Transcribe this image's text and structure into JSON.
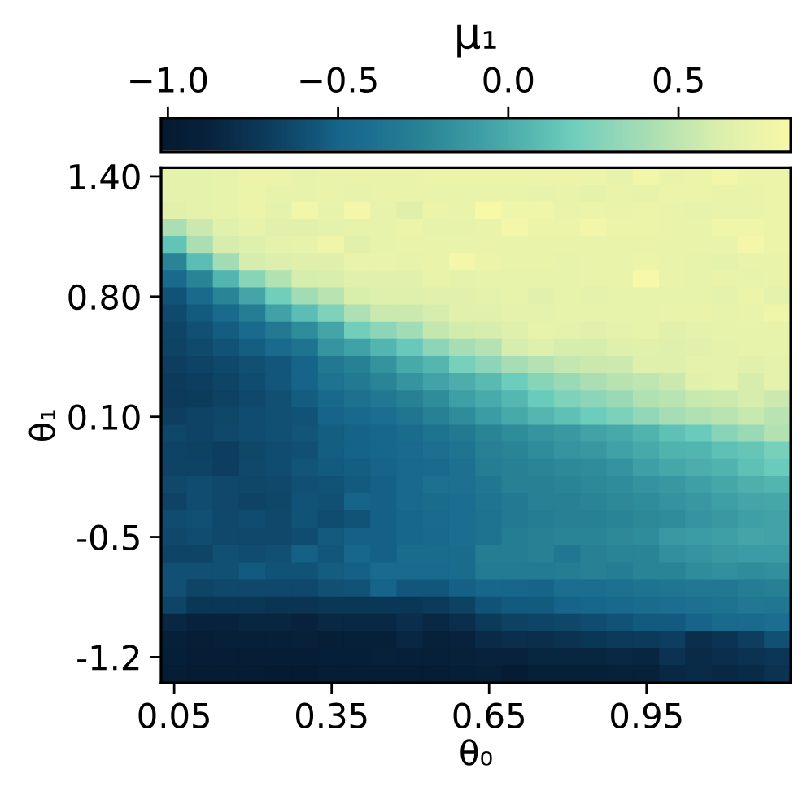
{
  "chart_data": {
    "type": "heatmap",
    "xlabel": "θ₀",
    "ylabel": "θ₁",
    "clabel": "μ₁",
    "categories": [
      "0.05",
      null,
      null,
      null,
      null,
      null,
      "0.35",
      null,
      null,
      null,
      null,
      null,
      "0.65",
      null,
      null,
      null,
      null,
      null,
      "0.95",
      null,
      null,
      null,
      null,
      null
    ],
    "y_categories": [
      "1.40",
      null,
      null,
      null,
      null,
      null,
      null,
      "0.80",
      null,
      null,
      null,
      null,
      null,
      null,
      "0.10",
      null,
      null,
      null,
      null,
      null,
      null,
      "-0.5",
      null,
      null,
      null,
      null,
      null,
      null,
      "-1.2",
      null
    ],
    "clim": [
      -1.02,
      0.83
    ],
    "cticks": [
      {
        "value": -1.0,
        "label": "−1.0"
      },
      {
        "value": -0.5,
        "label": "−0.5"
      },
      {
        "value": 0.0,
        "label": "0.0"
      },
      0.5
    ],
    "cells": [
      [
        0.68,
        0.68,
        0.7,
        0.75,
        0.75,
        0.7,
        0.72,
        0.72,
        0.72,
        0.72,
        0.74,
        0.74,
        0.74,
        0.74,
        0.75,
        0.75,
        0.74,
        0.7,
        0.78,
        0.72,
        0.74,
        0.78,
        0.74,
        0.74
      ],
      [
        0.68,
        0.68,
        0.7,
        0.74,
        0.7,
        0.7,
        0.72,
        0.7,
        0.72,
        0.72,
        0.72,
        0.72,
        0.72,
        0.72,
        0.7,
        0.72,
        0.68,
        0.72,
        0.7,
        0.74,
        0.74,
        0.72,
        0.72,
        0.74
      ],
      [
        0.66,
        0.68,
        0.7,
        0.74,
        0.68,
        0.78,
        0.7,
        0.8,
        0.7,
        0.65,
        0.74,
        0.72,
        0.82,
        0.76,
        0.76,
        0.72,
        0.74,
        0.72,
        0.74,
        0.72,
        0.7,
        0.72,
        0.72,
        0.74
      ],
      [
        0.42,
        0.55,
        0.66,
        0.7,
        0.66,
        0.66,
        0.68,
        0.7,
        0.7,
        0.74,
        0.7,
        0.7,
        0.72,
        0.8,
        0.74,
        0.74,
        0.78,
        0.74,
        0.74,
        0.72,
        0.72,
        0.76,
        0.76,
        0.74
      ],
      [
        0.13,
        0.42,
        0.6,
        0.64,
        0.68,
        0.7,
        0.76,
        0.66,
        0.7,
        0.72,
        0.72,
        0.72,
        0.72,
        0.72,
        0.72,
        0.72,
        0.72,
        0.72,
        0.72,
        0.72,
        0.72,
        0.72,
        0.8,
        0.74
      ],
      [
        -0.25,
        0.1,
        0.38,
        0.6,
        0.63,
        0.65,
        0.65,
        0.72,
        0.72,
        0.7,
        0.72,
        0.8,
        0.74,
        0.72,
        0.72,
        0.7,
        0.72,
        0.72,
        0.74,
        0.72,
        0.7,
        0.68,
        0.72,
        0.72
      ],
      [
        -0.45,
        -0.25,
        0.05,
        0.28,
        0.45,
        0.6,
        0.62,
        0.66,
        0.66,
        0.66,
        0.72,
        0.68,
        0.7,
        0.7,
        0.7,
        0.7,
        0.72,
        0.72,
        0.82,
        0.72,
        0.7,
        0.72,
        0.7,
        0.72
      ],
      [
        -0.58,
        -0.45,
        -0.25,
        -0.05,
        0.2,
        0.38,
        0.48,
        0.62,
        0.64,
        0.64,
        0.66,
        0.66,
        0.68,
        0.7,
        0.66,
        0.7,
        0.68,
        0.7,
        0.7,
        0.7,
        0.7,
        0.68,
        0.74,
        0.68
      ],
      [
        -0.63,
        -0.55,
        -0.45,
        -0.3,
        -0.07,
        0.1,
        0.25,
        0.43,
        0.55,
        0.55,
        0.6,
        0.66,
        0.66,
        0.68,
        0.68,
        0.7,
        0.7,
        0.7,
        0.7,
        0.72,
        0.72,
        0.7,
        0.72,
        0.76
      ],
      [
        -0.66,
        -0.6,
        -0.54,
        -0.45,
        -0.33,
        -0.2,
        -0.05,
        0.2,
        0.3,
        0.38,
        0.52,
        0.58,
        0.6,
        0.64,
        0.7,
        0.68,
        0.66,
        0.68,
        0.7,
        0.66,
        0.68,
        0.7,
        0.7,
        0.7
      ],
      [
        -0.67,
        -0.63,
        -0.58,
        -0.53,
        -0.45,
        -0.38,
        -0.15,
        -0.07,
        0.05,
        0.16,
        0.3,
        0.4,
        0.46,
        0.6,
        0.64,
        0.6,
        0.6,
        0.64,
        0.66,
        0.64,
        0.66,
        0.68,
        0.7,
        0.7
      ],
      [
        -0.7,
        -0.67,
        -0.64,
        -0.6,
        -0.56,
        -0.5,
        -0.34,
        -0.27,
        -0.16,
        -0.02,
        0.06,
        0.22,
        0.3,
        0.4,
        0.46,
        0.52,
        0.55,
        0.56,
        0.64,
        0.64,
        0.68,
        0.68,
        0.66,
        0.68
      ],
      [
        -0.72,
        -0.7,
        -0.66,
        -0.62,
        -0.56,
        -0.5,
        -0.38,
        -0.33,
        -0.25,
        -0.15,
        -0.06,
        0.0,
        0.08,
        0.18,
        0.28,
        0.35,
        0.42,
        0.47,
        0.5,
        0.55,
        0.66,
        0.68,
        0.6,
        0.68
      ],
      [
        -0.72,
        -0.71,
        -0.68,
        -0.64,
        -0.6,
        -0.54,
        -0.47,
        -0.4,
        -0.34,
        -0.28,
        -0.2,
        -0.08,
        -0.01,
        0.07,
        0.17,
        0.25,
        0.3,
        0.35,
        0.44,
        0.48,
        0.54,
        0.56,
        0.6,
        0.55
      ],
      [
        -0.7,
        -0.67,
        -0.65,
        -0.62,
        -0.6,
        -0.58,
        -0.5,
        -0.47,
        -0.42,
        -0.36,
        -0.28,
        -0.2,
        -0.1,
        -0.02,
        0.06,
        0.12,
        0.18,
        0.24,
        0.32,
        0.4,
        0.44,
        0.48,
        0.54,
        0.48
      ],
      [
        -0.65,
        -0.67,
        -0.64,
        -0.62,
        -0.6,
        -0.57,
        -0.53,
        -0.51,
        -0.48,
        -0.44,
        -0.38,
        -0.33,
        -0.25,
        -0.2,
        -0.15,
        -0.12,
        -0.06,
        -0.02,
        0.04,
        0.12,
        0.17,
        0.28,
        0.35,
        0.45
      ],
      [
        -0.67,
        -0.68,
        -0.7,
        -0.65,
        -0.62,
        -0.6,
        -0.53,
        -0.51,
        -0.48,
        -0.45,
        -0.41,
        -0.37,
        -0.28,
        -0.25,
        -0.2,
        -0.15,
        -0.13,
        -0.07,
        -0.02,
        0.04,
        0.05,
        0.12,
        0.15,
        0.22
      ],
      [
        -0.67,
        -0.67,
        -0.7,
        -0.64,
        -0.62,
        -0.57,
        -0.55,
        -0.53,
        -0.5,
        -0.47,
        -0.45,
        -0.4,
        -0.3,
        -0.28,
        -0.25,
        -0.22,
        -0.2,
        -0.16,
        -0.08,
        -0.03,
        0.0,
        0.04,
        0.12,
        0.17
      ],
      [
        -0.64,
        -0.62,
        -0.64,
        -0.65,
        -0.64,
        -0.6,
        -0.58,
        -0.55,
        -0.52,
        -0.46,
        -0.4,
        -0.4,
        -0.35,
        -0.28,
        -0.28,
        -0.25,
        -0.22,
        -0.2,
        -0.16,
        -0.13,
        -0.08,
        -0.03,
        0.02,
        0.05
      ],
      [
        -0.67,
        -0.62,
        -0.64,
        -0.67,
        -0.65,
        -0.58,
        -0.6,
        -0.5,
        -0.52,
        -0.46,
        -0.44,
        -0.42,
        -0.37,
        -0.33,
        -0.28,
        -0.28,
        -0.25,
        -0.22,
        -0.2,
        -0.16,
        -0.13,
        -0.08,
        -0.05,
        -0.03
      ],
      [
        -0.62,
        -0.6,
        -0.64,
        -0.62,
        -0.64,
        -0.58,
        -0.62,
        -0.58,
        -0.52,
        -0.48,
        -0.45,
        -0.42,
        -0.38,
        -0.33,
        -0.3,
        -0.28,
        -0.27,
        -0.25,
        -0.22,
        -0.2,
        -0.15,
        -0.12,
        -0.08,
        -0.06
      ],
      [
        -0.64,
        -0.62,
        -0.64,
        -0.64,
        -0.64,
        -0.62,
        -0.55,
        -0.52,
        -0.52,
        -0.48,
        -0.46,
        -0.42,
        -0.38,
        -0.3,
        -0.28,
        -0.25,
        -0.25,
        -0.22,
        -0.2,
        -0.12,
        -0.1,
        -0.08,
        -0.05,
        -0.06
      ],
      [
        -0.66,
        -0.66,
        -0.6,
        -0.62,
        -0.6,
        -0.52,
        -0.56,
        -0.48,
        -0.52,
        -0.44,
        -0.44,
        -0.44,
        -0.3,
        -0.3,
        -0.28,
        -0.35,
        -0.28,
        -0.25,
        -0.25,
        -0.18,
        -0.15,
        -0.12,
        -0.1,
        -0.1
      ],
      [
        -0.6,
        -0.6,
        -0.6,
        -0.55,
        -0.58,
        -0.58,
        -0.54,
        -0.52,
        -0.45,
        -0.45,
        -0.45,
        -0.44,
        -0.32,
        -0.32,
        -0.32,
        -0.3,
        -0.28,
        -0.3,
        -0.25,
        -0.25,
        -0.2,
        -0.18,
        -0.2,
        -0.18
      ],
      [
        -0.6,
        -0.66,
        -0.64,
        -0.64,
        -0.64,
        -0.64,
        -0.6,
        -0.58,
        -0.5,
        -0.56,
        -0.56,
        -0.52,
        -0.48,
        -0.48,
        -0.5,
        -0.42,
        -0.42,
        -0.4,
        -0.38,
        -0.36,
        -0.34,
        -0.34,
        -0.3,
        -0.28
      ],
      [
        -0.66,
        -0.74,
        -0.74,
        -0.74,
        -0.76,
        -0.76,
        -0.74,
        -0.74,
        -0.74,
        -0.74,
        -0.72,
        -0.68,
        -0.58,
        -0.55,
        -0.55,
        -0.5,
        -0.48,
        -0.46,
        -0.44,
        -0.42,
        -0.4,
        -0.38,
        -0.34,
        -0.35
      ],
      [
        -0.85,
        -0.88,
        -0.88,
        -0.86,
        -0.86,
        -0.88,
        -0.84,
        -0.84,
        -0.84,
        -0.8,
        -0.84,
        -0.8,
        -0.72,
        -0.68,
        -0.66,
        -0.65,
        -0.62,
        -0.58,
        -0.55,
        -0.55,
        -0.5,
        -0.45,
        -0.45,
        -0.42
      ],
      [
        -0.92,
        -0.95,
        -0.92,
        -0.92,
        -0.92,
        -0.9,
        -0.95,
        -0.92,
        -0.92,
        -0.85,
        -0.9,
        -0.88,
        -0.82,
        -0.8,
        -0.8,
        -0.78,
        -0.74,
        -0.72,
        -0.72,
        -0.7,
        -0.8,
        -0.76,
        -0.7,
        -0.6
      ],
      [
        -0.94,
        -0.96,
        -0.96,
        -0.96,
        -0.96,
        -0.96,
        -0.94,
        -0.94,
        -0.9,
        -0.92,
        -0.92,
        -0.9,
        -0.88,
        -0.88,
        -0.86,
        -0.86,
        -0.86,
        -0.84,
        -0.86,
        -0.78,
        -0.82,
        -0.8,
        -0.78,
        -0.75
      ],
      [
        -0.96,
        -0.98,
        -0.98,
        -0.98,
        -1.0,
        -1.0,
        -0.96,
        -0.96,
        -0.96,
        -0.96,
        -0.96,
        -0.94,
        -0.92,
        -0.98,
        -0.92,
        -0.92,
        -0.92,
        -0.9,
        -0.9,
        -0.84,
        -0.82,
        -0.84,
        -0.82,
        -0.78
      ]
    ]
  }
}
